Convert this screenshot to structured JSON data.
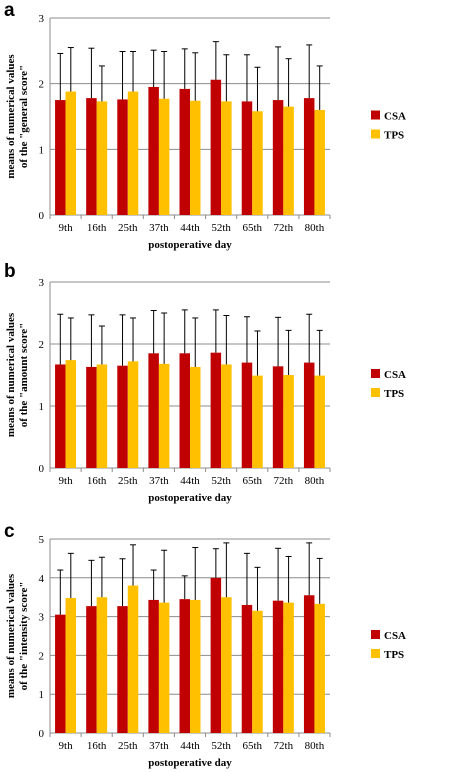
{
  "chart_data": [
    {
      "type": "bar",
      "panel_label": "a",
      "categories": [
        "9th",
        "16th",
        "25th",
        "37th",
        "44th",
        "52th",
        "65th",
        "72th",
        "80th"
      ],
      "series": [
        {
          "name": "CSA",
          "color": "#c00000",
          "values": [
            1.75,
            1.78,
            1.76,
            1.95,
            1.92,
            2.06,
            1.73,
            1.75,
            1.78
          ],
          "errors": [
            0.71,
            0.76,
            0.73,
            0.56,
            0.61,
            0.58,
            0.71,
            0.81,
            0.81
          ]
        },
        {
          "name": "TPS",
          "color": "#ffc000",
          "values": [
            1.88,
            1.73,
            1.88,
            1.77,
            1.74,
            1.73,
            1.58,
            1.65,
            1.6
          ],
          "errors": [
            0.67,
            0.54,
            0.61,
            0.72,
            0.73,
            0.71,
            0.67,
            0.73,
            0.67
          ]
        }
      ],
      "xlabel": "postoperative day",
      "ylabel_lines": [
        "means of numerical values",
        "of the \"general score\""
      ],
      "ylim": [
        0,
        3
      ],
      "yticks": [
        "0",
        "1",
        "2",
        "3"
      ],
      "grid": true,
      "legend": "right"
    },
    {
      "type": "bar",
      "panel_label": "b",
      "categories": [
        "9th",
        "16th",
        "25th",
        "37th",
        "44th",
        "52th",
        "65th",
        "72th",
        "80th"
      ],
      "series": [
        {
          "name": "CSA",
          "color": "#c00000",
          "values": [
            1.67,
            1.63,
            1.65,
            1.85,
            1.85,
            1.86,
            1.7,
            1.64,
            1.7
          ],
          "errors": [
            0.81,
            0.84,
            0.82,
            0.69,
            0.7,
            0.69,
            0.74,
            0.79,
            0.78
          ]
        },
        {
          "name": "TPS",
          "color": "#ffc000",
          "values": [
            1.74,
            1.67,
            1.72,
            1.68,
            1.63,
            1.67,
            1.49,
            1.5,
            1.49
          ],
          "errors": [
            0.68,
            0.62,
            0.7,
            0.82,
            0.79,
            0.79,
            0.72,
            0.72,
            0.73
          ]
        }
      ],
      "xlabel": "postoperative day",
      "ylabel_lines": [
        "means of numerical values",
        "of the \"amount score\""
      ],
      "ylim": [
        0,
        3
      ],
      "yticks": [
        "0",
        "1",
        "2",
        "3"
      ],
      "grid": true,
      "legend": "right"
    },
    {
      "type": "bar",
      "panel_label": "c",
      "categories": [
        "9th",
        "16th",
        "25th",
        "37th",
        "44th",
        "52th",
        "65th",
        "72th",
        "80th"
      ],
      "series": [
        {
          "name": "CSA",
          "color": "#c00000",
          "values": [
            3.05,
            3.27,
            3.27,
            3.43,
            3.45,
            4.0,
            3.3,
            3.41,
            3.55
          ],
          "errors": [
            1.15,
            1.18,
            1.22,
            0.77,
            0.6,
            0.75,
            1.33,
            1.35,
            1.35
          ]
        },
        {
          "name": "TPS",
          "color": "#ffc000",
          "values": [
            3.48,
            3.5,
            3.8,
            3.36,
            3.43,
            3.5,
            3.15,
            3.36,
            3.33
          ],
          "errors": [
            1.15,
            1.03,
            1.05,
            1.35,
            1.35,
            1.4,
            1.12,
            1.19,
            1.17
          ]
        }
      ],
      "xlabel": "postoperative day",
      "ylabel_lines": [
        "means of numerical values",
        "of the \"intensity score\""
      ],
      "ylim": [
        0,
        5
      ],
      "yticks": [
        "0",
        "1",
        "2",
        "3",
        "4",
        "5"
      ],
      "grid": true,
      "legend": "right"
    }
  ]
}
